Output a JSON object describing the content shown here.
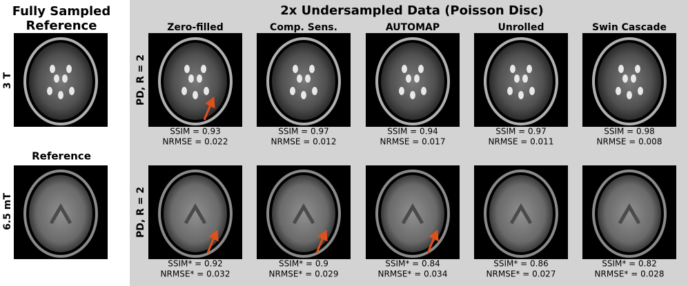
{
  "left": {
    "title_lines": [
      "Fully Sampled",
      "Reference"
    ],
    "row_labels": [
      "3 T",
      "6.5 mT"
    ],
    "image_title": "Reference"
  },
  "panel": {
    "title": "2x Undersampled Data (Poisson Disc)",
    "columns": [
      "Zero-filled",
      "Comp. Sens.",
      "AUTOMAP",
      "Unrolled",
      "Swin Cascade"
    ],
    "row_labels": [
      "PD, R = 2",
      "PD, R = 2"
    ],
    "metrics": [
      [
        [
          "SSIM = 0.93",
          "NRMSE = 0.022"
        ],
        [
          "SSIM = 0.97",
          "NRMSE = 0.012"
        ],
        [
          "SSIM = 0.94",
          "NRMSE = 0.017"
        ],
        [
          "SSIM = 0.97",
          "NRMSE = 0.011"
        ],
        [
          "SSIM = 0.98",
          "NRMSE = 0.008"
        ]
      ],
      [
        [
          "SSIM* = 0.92",
          "NRMSE* = 0.032"
        ],
        [
          "SSIM* = 0.9",
          "NRMSE* = 0.029"
        ],
        [
          "SSIM* = 0.84",
          "NRMSE* = 0.034"
        ],
        [
          "SSIM* = 0.86",
          "NRMSE* = 0.027"
        ],
        [
          "SSIM* = 0.82",
          "NRMSE* = 0.028"
        ]
      ]
    ]
  }
}
